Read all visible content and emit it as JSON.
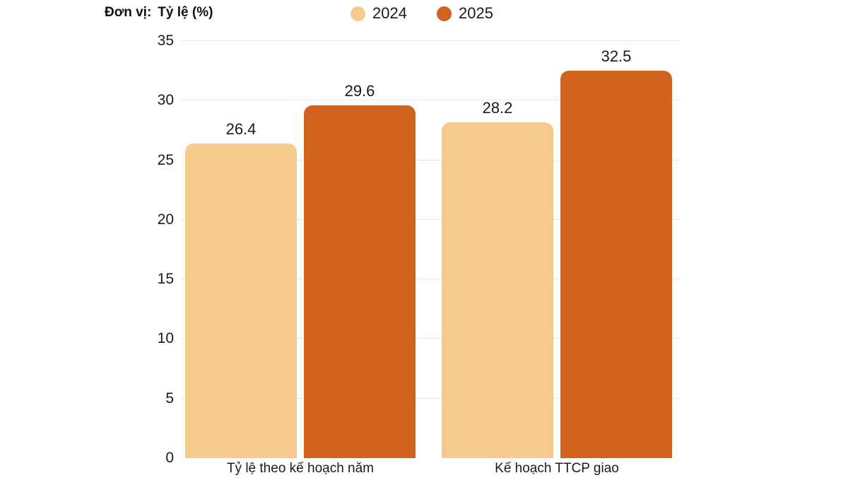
{
  "header": {
    "unit_prefix": "Đơn vị:",
    "unit_value": "Tỷ lệ (%)"
  },
  "legend": [
    {
      "label": "2024",
      "color": "#F5CA8D"
    },
    {
      "label": "2025",
      "color": "#D2631F"
    }
  ],
  "colors": {
    "series_2024": "#F5CA8D",
    "series_2025": "#D2631F",
    "gridline": "#E8E8E8",
    "text": "#1A1A1A"
  },
  "chart_data": {
    "type": "bar",
    "title": "",
    "xlabel": "",
    "ylabel": "Tỷ lệ (%)",
    "categories": [
      "Tỷ lệ theo kế hoạch năm",
      "Kế hoạch TTCP giao"
    ],
    "series": [
      {
        "name": "2024",
        "color": "#F5CA8D",
        "values": [
          26.4,
          28.2
        ]
      },
      {
        "name": "2025",
        "color": "#D2631F",
        "values": [
          29.6,
          32.5
        ]
      }
    ],
    "ylim": [
      0,
      35
    ],
    "yticks": [
      0,
      5,
      10,
      15,
      20,
      25,
      30,
      35
    ],
    "grid": true,
    "legend_position": "top-center",
    "value_labels": true
  }
}
